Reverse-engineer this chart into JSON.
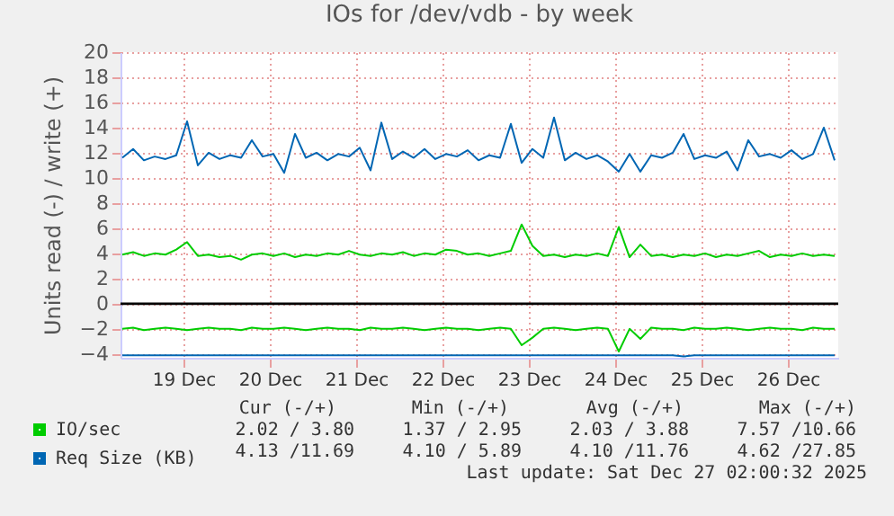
{
  "chart_data": {
    "type": "line",
    "title": "IOs for /dev/vdb - by week",
    "ylabel": "Units read (-) / write (+)",
    "x": [
      "2025-12-18T19:00",
      "2025-12-18T22:00",
      "2025-12-19T01:00",
      "2025-12-19T04:00",
      "2025-12-19T07:00",
      "2025-12-19T10:00",
      "2025-12-19T13:00",
      "2025-12-19T16:00",
      "2025-12-19T19:00",
      "2025-12-19T22:00",
      "2025-12-20T01:00",
      "2025-12-20T04:00",
      "2025-12-20T07:00",
      "2025-12-20T10:00",
      "2025-12-20T13:00",
      "2025-12-20T16:00",
      "2025-12-20T19:00",
      "2025-12-20T22:00",
      "2025-12-21T01:00",
      "2025-12-21T04:00",
      "2025-12-21T07:00",
      "2025-12-21T10:00",
      "2025-12-21T13:00",
      "2025-12-21T16:00",
      "2025-12-21T19:00",
      "2025-12-21T22:00",
      "2025-12-22T01:00",
      "2025-12-22T04:00",
      "2025-12-22T07:00",
      "2025-12-22T10:00",
      "2025-12-22T13:00",
      "2025-12-22T16:00",
      "2025-12-22T19:00",
      "2025-12-22T22:00",
      "2025-12-23T01:00",
      "2025-12-23T04:00",
      "2025-12-23T07:00",
      "2025-12-23T10:00",
      "2025-12-23T13:00",
      "2025-12-23T16:00",
      "2025-12-23T19:00",
      "2025-12-23T22:00",
      "2025-12-24T01:00",
      "2025-12-24T04:00",
      "2025-12-24T07:00",
      "2025-12-24T10:00",
      "2025-12-24T13:00",
      "2025-12-24T16:00",
      "2025-12-24T19:00",
      "2025-12-24T22:00",
      "2025-12-25T01:00",
      "2025-12-25T04:00",
      "2025-12-25T07:00",
      "2025-12-25T10:00",
      "2025-12-25T13:00",
      "2025-12-25T16:00",
      "2025-12-25T19:00",
      "2025-12-25T22:00",
      "2025-12-26T01:00",
      "2025-12-26T04:00",
      "2025-12-26T07:00",
      "2025-12-26T10:00",
      "2025-12-26T13:00",
      "2025-12-26T16:00",
      "2025-12-26T19:00",
      "2025-12-26T22:00",
      "2025-12-27T01:00"
    ],
    "series": [
      {
        "name": "IO/sec",
        "color": "#00cc00",
        "values": [
          3.9,
          4.1,
          3.8,
          4.0,
          3.9,
          4.3,
          4.9,
          3.8,
          3.9,
          3.7,
          3.8,
          3.5,
          3.9,
          4.0,
          3.8,
          4.0,
          3.7,
          3.9,
          3.8,
          4.0,
          3.9,
          4.2,
          3.9,
          3.8,
          4.0,
          3.9,
          4.1,
          3.8,
          4.0,
          3.9,
          4.3,
          4.2,
          3.9,
          4.0,
          3.8,
          4.0,
          4.2,
          6.3,
          4.6,
          3.8,
          3.9,
          3.7,
          3.9,
          3.8,
          4.0,
          3.8,
          6.1,
          3.7,
          4.7,
          3.8,
          3.9,
          3.7,
          3.9,
          3.8,
          4.0,
          3.7,
          3.9,
          3.8,
          4.0,
          4.2,
          3.7,
          3.9,
          3.8,
          4.0,
          3.8,
          3.9,
          3.8
        ]
      },
      {
        "name": "Req Size (KB)",
        "color": "#0066b3",
        "values": [
          11.6,
          12.3,
          11.4,
          11.7,
          11.5,
          11.8,
          14.5,
          11.0,
          12.0,
          11.5,
          11.8,
          11.6,
          13.0,
          11.7,
          11.9,
          10.4,
          13.5,
          11.6,
          12.0,
          11.4,
          11.9,
          11.7,
          12.4,
          10.6,
          14.4,
          11.5,
          12.1,
          11.6,
          12.3,
          11.5,
          11.9,
          11.7,
          12.2,
          11.4,
          11.8,
          11.6,
          14.3,
          11.2,
          12.3,
          11.6,
          14.8,
          11.4,
          12.0,
          11.5,
          11.8,
          11.3,
          10.5,
          11.9,
          10.5,
          11.8,
          11.6,
          12.0,
          13.5,
          11.5,
          11.8,
          11.6,
          12.1,
          10.6,
          13.0,
          11.7,
          11.9,
          11.6,
          12.2,
          11.5,
          11.9,
          14.0,
          11.4
        ]
      },
      {
        "color": "#00cc00",
        "values": [
          -2.0,
          -1.9,
          -2.1,
          -2.0,
          -1.9,
          -2.0,
          -2.1,
          -2.0,
          -1.9,
          -2.0,
          -2.0,
          -2.1,
          -1.9,
          -2.0,
          -2.0,
          -1.9,
          -2.0,
          -2.1,
          -2.0,
          -1.9,
          -2.0,
          -2.0,
          -2.1,
          -1.9,
          -2.0,
          -2.0,
          -1.9,
          -2.0,
          -2.1,
          -2.0,
          -1.9,
          -2.0,
          -2.0,
          -2.1,
          -2.0,
          -1.9,
          -2.0,
          -3.3,
          -2.7,
          -2.0,
          -1.9,
          -2.0,
          -2.1,
          -2.0,
          -1.9,
          -2.0,
          -3.8,
          -2.0,
          -2.8,
          -1.9,
          -2.0,
          -2.0,
          -2.1,
          -1.9,
          -2.0,
          -2.0,
          -1.9,
          -2.0,
          -2.1,
          -2.0,
          -1.9,
          -2.0,
          -2.0,
          -2.1,
          -1.9,
          -2.0,
          -2.0
        ]
      },
      {
        "color": "#0066b3",
        "values": [
          -4.1,
          -4.1,
          -4.1,
          -4.1,
          -4.1,
          -4.1,
          -4.1,
          -4.1,
          -4.1,
          -4.1,
          -4.1,
          -4.1,
          -4.1,
          -4.1,
          -4.1,
          -4.1,
          -4.1,
          -4.1,
          -4.1,
          -4.1,
          -4.1,
          -4.1,
          -4.1,
          -4.1,
          -4.1,
          -4.1,
          -4.1,
          -4.1,
          -4.1,
          -4.1,
          -4.1,
          -4.1,
          -4.1,
          -4.1,
          -4.1,
          -4.1,
          -4.1,
          -4.1,
          -4.1,
          -4.1,
          -4.1,
          -4.1,
          -4.1,
          -4.1,
          -4.1,
          -4.1,
          -4.1,
          -4.1,
          -4.1,
          -4.1,
          -4.1,
          -4.1,
          -4.2,
          -4.1,
          -4.1,
          -4.1,
          -4.1,
          -4.1,
          -4.1,
          -4.1,
          -4.1,
          -4.1,
          -4.1,
          -4.1,
          -4.1,
          -4.1,
          -4.1
        ]
      }
    ],
    "xlim": [
      "2025-12-18T18:30",
      "2025-12-27T02:00"
    ],
    "xticks": [
      {
        "value": "2025-12-19T12:00",
        "label": "19 Dec"
      },
      {
        "value": "2025-12-20T12:00",
        "label": "20 Dec"
      },
      {
        "value": "2025-12-21T12:00",
        "label": "21 Dec"
      },
      {
        "value": "2025-12-22T12:00",
        "label": "22 Dec"
      },
      {
        "value": "2025-12-23T12:00",
        "label": "23 Dec"
      },
      {
        "value": "2025-12-24T12:00",
        "label": "24 Dec"
      },
      {
        "value": "2025-12-25T12:00",
        "label": "25 Dec"
      },
      {
        "value": "2025-12-26T12:00",
        "label": "26 Dec"
      }
    ],
    "ylim": [
      -4.3,
      20
    ],
    "yticks": [
      -4,
      -2,
      0,
      2,
      4,
      6,
      8,
      10,
      12,
      14,
      16,
      18,
      20
    ],
    "grid": true,
    "legend": "bottom left",
    "line_style": "solid",
    "ref_lines": [
      {
        "axis": "y",
        "value": 0,
        "color": "#000000"
      }
    ],
    "annotations": [
      "Cur (-/+)",
      "Min (-/+)",
      "Avg (-/+)",
      "Max (-/+)",
      "2.02 / 3.80",
      "1.37 / 2.95",
      "2.03 / 3.88",
      "7.57 /10.66",
      "4.13 /11.69",
      "4.10 / 5.89",
      "4.10 /11.76",
      "4.62 /27.85",
      "Last update: Sat Dec 27 02:00:32 2025"
    ]
  }
}
